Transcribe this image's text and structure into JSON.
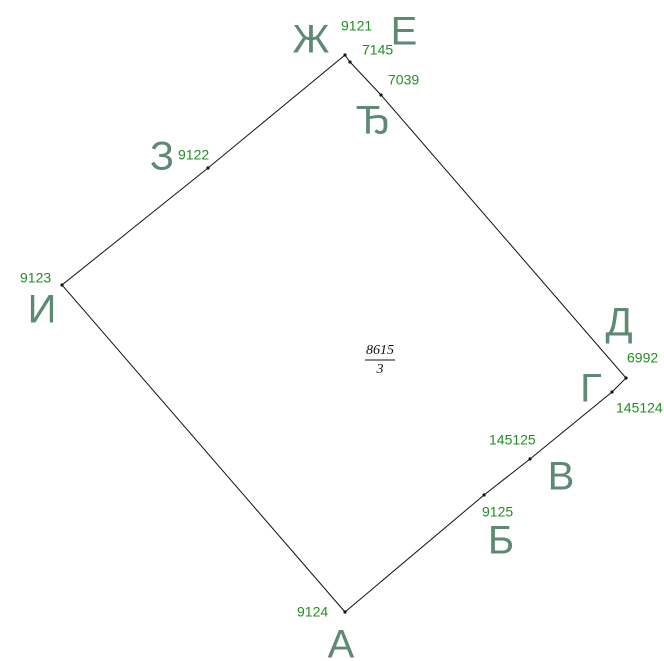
{
  "points": [
    {
      "letter": "Ж",
      "number": "9121"
    },
    {
      "letter": "Е",
      "number": "7145"
    },
    {
      "letter": "Ђ",
      "number": "7039"
    },
    {
      "letter": "Д",
      "number": "6992"
    },
    {
      "letter": "Г",
      "number": "145124"
    },
    {
      "letter": "В",
      "number": "145125"
    },
    {
      "letter": "Б",
      "number": "9125"
    },
    {
      "letter": "А",
      "number": "9124"
    },
    {
      "letter": "И",
      "number": "9123"
    },
    {
      "letter": "З",
      "number": "9122"
    }
  ],
  "parcel": {
    "number": "8615",
    "sub": "3"
  }
}
